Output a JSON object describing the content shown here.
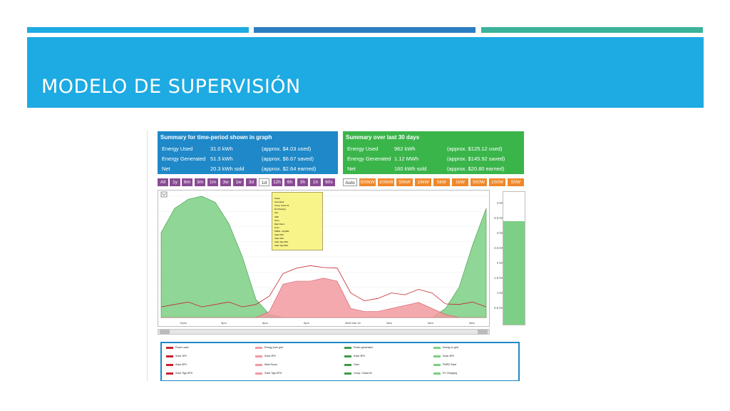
{
  "slide": {
    "title": "MODELO DE SUPERVISIÓN",
    "colors": {
      "band": "#1eaae2",
      "stripe_1": "#1eaae2",
      "stripe_2": "#2a7dc2",
      "stripe_3": "#3ab39a"
    }
  },
  "summary_left": {
    "title": "Summary for time-period shown in graph",
    "rows": [
      {
        "label": "Energy Used",
        "value": "31.0 kWh",
        "note": "(approx. $4.03 used)"
      },
      {
        "label": "Energy Generated",
        "value": "51.3 kWh",
        "note": "(approx. $6.67 saved)"
      },
      {
        "label": "Net",
        "value": "20.3 kWh sold",
        "note": "(approx. $2.64 earned)"
      }
    ],
    "color": "#1e88c8"
  },
  "summary_right": {
    "title": "Summary over last 30 days",
    "rows": [
      {
        "label": "Energy Used",
        "value": "962 kWh",
        "note": "(approx. $125.12 used)"
      },
      {
        "label": "Energy Generated",
        "value": "1.12 MWh",
        "note": "(approx. $145.92 saved)"
      },
      {
        "label": "Net",
        "value": "160 kWh sold",
        "note": "(approx. $20.80 earned)"
      }
    ],
    "color": "#3ab54a"
  },
  "range_buttons": [
    "All",
    "1y",
    "6m",
    "3m",
    "1m",
    "3w",
    "1w",
    "3d",
    "1d",
    "12h",
    "6h",
    "3h",
    "1h",
    "60s"
  ],
  "range_selected": "1d",
  "scale_buttons": [
    "Auto",
    "500kW",
    "100kW",
    "50kW",
    "10kW",
    "5kW",
    "1kW",
    "500W",
    "100W",
    "50W"
  ],
  "scale_selected": "Auto",
  "y_axis_labels": [
    "4 kW",
    "3.5 kW",
    "3 kW",
    "2.5 kW",
    "2 kW",
    "1.5 kW",
    "1 kW",
    "0.5 kW"
  ],
  "x_axis_labels": [
    "12pm",
    "3pm",
    "6pm",
    "9pm",
    "Wed Mar 16",
    "3am",
    "6am",
    "9am"
  ],
  "legend": [
    "Power used",
    "Energy from grid",
    "Power generated",
    "Energy to grid",
    "Solar 1PH",
    "Solar 2PH",
    "Solar 3PH",
    "Solar 4PH",
    "Solar 5PH",
    "Main Room",
    "Oven",
    "PWR2 Solar",
    "Solar Tigo-SPH",
    "Solar Tigo-SPH",
    "Comp. Closet W",
    "EV Charging"
  ],
  "tooltip": {
    "rows": [
      "Power",
      "Generated",
      "Comp. Closet W",
      "EV Charging",
      "Solr",
      "SHP",
      "Oven",
      "Main Room",
      "Oven",
      "PWR2 - DryAllfit",
      "Solar 2PH",
      "Solar 3PH",
      "Solar Tigo-3PH",
      "Solar Tigo-SPH"
    ]
  },
  "chart_data": {
    "type": "area",
    "title": "",
    "xlabel": "",
    "ylabel": "",
    "ylim": [
      0,
      4
    ],
    "x": [
      "10:00",
      "11:00",
      "12:00",
      "13:00",
      "14:00",
      "15:00",
      "16:00",
      "17:00",
      "18:00",
      "19:00",
      "20:00",
      "21:00",
      "22:00",
      "23:00",
      "00:00",
      "01:00",
      "02:00",
      "03:00",
      "04:00",
      "05:00",
      "06:00",
      "07:00",
      "08:00",
      "09:00",
      "10:00"
    ],
    "series": [
      {
        "name": "Energy to grid",
        "values": [
          2.8,
          3.6,
          3.9,
          4.0,
          3.8,
          3.1,
          2.0,
          0.6,
          0.1,
          0,
          0,
          0,
          0,
          0,
          0,
          0,
          0,
          0,
          0,
          0,
          0,
          0.3,
          1.0,
          2.4,
          3.6
        ],
        "color": "#7ccf84"
      },
      {
        "name": "Energy from grid",
        "values": [
          0,
          0,
          0,
          0,
          0,
          0,
          0,
          0,
          0.2,
          1.1,
          1.2,
          1.2,
          1.3,
          1.2,
          0.3,
          0.2,
          0.2,
          0.3,
          0.4,
          0.5,
          0.3,
          0.1,
          0,
          0,
          0
        ],
        "color": "#f29aa0"
      }
    ]
  }
}
